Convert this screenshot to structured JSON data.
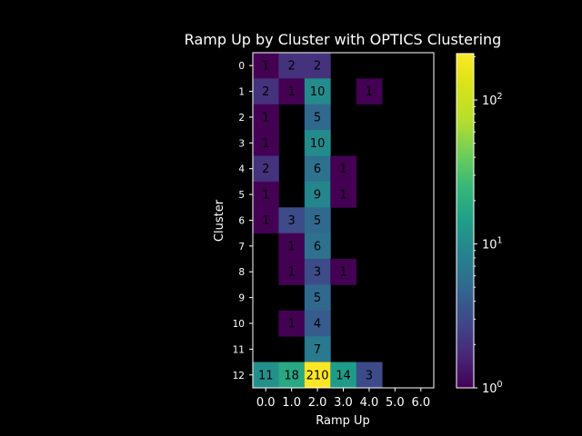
{
  "chart_data": {
    "type": "heatmap",
    "title": "Ramp Up by Cluster with OPTICS Clustering",
    "xlabel": "Ramp Up",
    "ylabel": "Cluster",
    "x_ticks": [
      "0.0",
      "1.0",
      "2.0",
      "3.0",
      "4.0",
      "5.0",
      "6.0"
    ],
    "y_ticks": [
      "0",
      "1",
      "2",
      "3",
      "4",
      "5",
      "6",
      "7",
      "8",
      "9",
      "10",
      "11",
      "12"
    ],
    "scale": "log",
    "colormap": "viridis",
    "vmin": 1,
    "vmax": 210,
    "colorbar_ticks": [
      {
        "value": 1,
        "base": "10",
        "exp": "0"
      },
      {
        "value": 10,
        "base": "10",
        "exp": "1"
      },
      {
        "value": 100,
        "base": "10",
        "exp": "2"
      }
    ],
    "values": [
      [
        1,
        2,
        2,
        null,
        null,
        null,
        null
      ],
      [
        2,
        1,
        10,
        null,
        1,
        null,
        null
      ],
      [
        1,
        null,
        5,
        null,
        null,
        null,
        null
      ],
      [
        1,
        null,
        10,
        null,
        null,
        null,
        null
      ],
      [
        2,
        null,
        6,
        1,
        null,
        null,
        null
      ],
      [
        1,
        null,
        9,
        1,
        null,
        null,
        null
      ],
      [
        1,
        3,
        5,
        null,
        null,
        null,
        null
      ],
      [
        null,
        1,
        6,
        null,
        null,
        null,
        null
      ],
      [
        null,
        1,
        3,
        1,
        null,
        null,
        null
      ],
      [
        null,
        null,
        5,
        null,
        null,
        null,
        null
      ],
      [
        null,
        1,
        4,
        null,
        null,
        null,
        null
      ],
      [
        null,
        null,
        7,
        null,
        null,
        null,
        null
      ],
      [
        11,
        18,
        210,
        14,
        3,
        null,
        null
      ]
    ]
  }
}
